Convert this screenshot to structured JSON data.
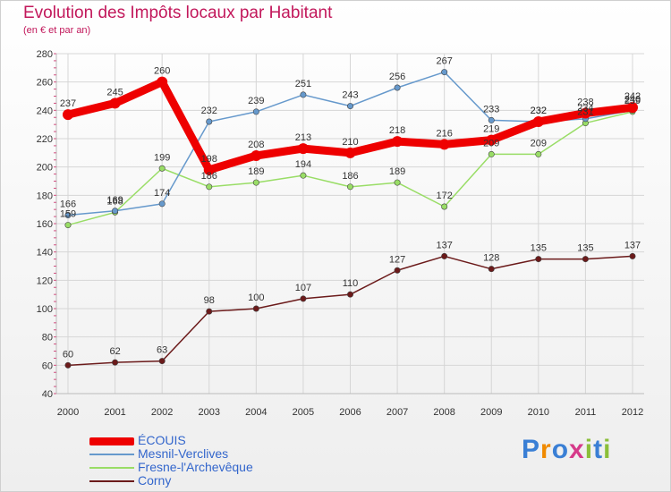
{
  "chart_data": {
    "type": "line",
    "title": "Evolution des Impôts locaux par Habitant",
    "subtitle": "(en € et par an)",
    "xlabel": "",
    "ylabel": "",
    "categories": [
      "2000",
      "2001",
      "2002",
      "2003",
      "2004",
      "2005",
      "2006",
      "2007",
      "2008",
      "2009",
      "2010",
      "2011",
      "2012"
    ],
    "ylim": [
      40,
      280
    ],
    "yticks": [
      40,
      60,
      80,
      100,
      120,
      140,
      160,
      180,
      200,
      220,
      240,
      260,
      280
    ],
    "grid": true,
    "legend_position": "bottom-left",
    "series": [
      {
        "name": "ÉCOUIS",
        "color": "#ee0000",
        "values": [
          237,
          245,
          260,
          198,
          208,
          213,
          210,
          218,
          216,
          219,
          232,
          238,
          242
        ]
      },
      {
        "name": "Mesnil-Verclives",
        "color": "#6699cc",
        "values": [
          166,
          169,
          174,
          232,
          239,
          251,
          243,
          256,
          267,
          233,
          232,
          234,
          240
        ]
      },
      {
        "name": "Fresne-l'Archevêque",
        "color": "#99dd66",
        "values": [
          159,
          168,
          199,
          186,
          189,
          194,
          186,
          189,
          172,
          209,
          209,
          231,
          239
        ]
      },
      {
        "name": "Corny",
        "color": "#6b1a1a",
        "values": [
          60,
          62,
          63,
          98,
          100,
          107,
          110,
          127,
          137,
          128,
          135,
          135,
          137
        ]
      }
    ]
  },
  "logo": {
    "text": "Proxiti",
    "colors": [
      "#3a7fd5",
      "#f08a00",
      "#3a7fd5",
      "#d63a8a",
      "#8bbf3a",
      "#3a7fd5",
      "#8bbf3a"
    ]
  }
}
